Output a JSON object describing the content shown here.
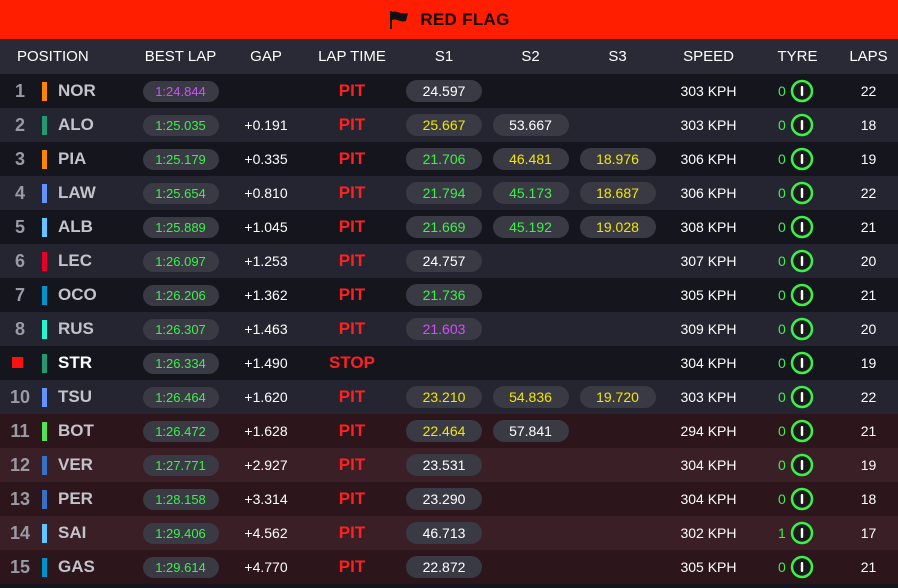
{
  "banner": {
    "title": "RED FLAG"
  },
  "colors": {
    "banner": "#ff1e00",
    "green": "#3cf04a",
    "yellow": "#f3e600",
    "purple": "#d34dff",
    "red": "#ff2020"
  },
  "headers": {
    "position": "POSITION",
    "best_lap": "BEST LAP",
    "gap": "GAP",
    "lap_time": "LAP TIME",
    "s1": "S1",
    "s2": "S2",
    "s3": "S3",
    "speed": "SPEED",
    "tyre": "TYRE",
    "laps": "LAPS"
  },
  "rows": [
    {
      "pos": "1",
      "driver": "NOR",
      "team_color": "#ff8700",
      "best_lap": "1:24.844",
      "best_cls": "purple",
      "gap": "",
      "status": "PIT",
      "s1": "24.597",
      "s1c": "white",
      "s2": "",
      "s2c": "",
      "s3": "",
      "s3c": "",
      "speed": "303 KPH",
      "tyre_age": "0",
      "laps": "22",
      "bg": "dark"
    },
    {
      "pos": "2",
      "driver": "ALO",
      "team_color": "#229971",
      "best_lap": "1:25.035",
      "best_cls": "green",
      "gap": "+0.191",
      "status": "PIT",
      "s1": "25.667",
      "s1c": "yellow",
      "s2": "53.667",
      "s2c": "white",
      "s3": "",
      "s3c": "",
      "speed": "303 KPH",
      "tyre_age": "0",
      "laps": "18",
      "bg": "light"
    },
    {
      "pos": "3",
      "driver": "PIA",
      "team_color": "#ff8700",
      "best_lap": "1:25.179",
      "best_cls": "green",
      "gap": "+0.335",
      "status": "PIT",
      "s1": "21.706",
      "s1c": "green",
      "s2": "46.481",
      "s2c": "yellow",
      "s3": "18.976",
      "s3c": "yellow",
      "speed": "306 KPH",
      "tyre_age": "0",
      "laps": "19",
      "bg": "dark"
    },
    {
      "pos": "4",
      "driver": "LAW",
      "team_color": "#6692ff",
      "best_lap": "1:25.654",
      "best_cls": "green",
      "gap": "+0.810",
      "status": "PIT",
      "s1": "21.794",
      "s1c": "green",
      "s2": "45.173",
      "s2c": "green",
      "s3": "18.687",
      "s3c": "yellow",
      "speed": "306 KPH",
      "tyre_age": "0",
      "laps": "22",
      "bg": "light"
    },
    {
      "pos": "5",
      "driver": "ALB",
      "team_color": "#64c4ff",
      "best_lap": "1:25.889",
      "best_cls": "green",
      "gap": "+1.045",
      "status": "PIT",
      "s1": "21.669",
      "s1c": "green",
      "s2": "45.192",
      "s2c": "green",
      "s3": "19.028",
      "s3c": "yellow",
      "speed": "308 KPH",
      "tyre_age": "0",
      "laps": "21",
      "bg": "dark"
    },
    {
      "pos": "6",
      "driver": "LEC",
      "team_color": "#e8002d",
      "best_lap": "1:26.097",
      "best_cls": "green",
      "gap": "+1.253",
      "status": "PIT",
      "s1": "24.757",
      "s1c": "white",
      "s2": "",
      "s2c": "",
      "s3": "",
      "s3c": "",
      "speed": "307 KPH",
      "tyre_age": "0",
      "laps": "20",
      "bg": "light"
    },
    {
      "pos": "7",
      "driver": "OCO",
      "team_color": "#0093cc",
      "best_lap": "1:26.206",
      "best_cls": "green",
      "gap": "+1.362",
      "status": "PIT",
      "s1": "21.736",
      "s1c": "green",
      "s2": "",
      "s2c": "",
      "s3": "",
      "s3c": "",
      "speed": "305 KPH",
      "tyre_age": "0",
      "laps": "21",
      "bg": "dark"
    },
    {
      "pos": "8",
      "driver": "RUS",
      "team_color": "#27f4d2",
      "best_lap": "1:26.307",
      "best_cls": "green",
      "gap": "+1.463",
      "status": "PIT",
      "s1": "21.603",
      "s1c": "purple",
      "s2": "",
      "s2c": "",
      "s3": "",
      "s3c": "",
      "speed": "309 KPH",
      "tyre_age": "0",
      "laps": "20",
      "bg": "light"
    },
    {
      "pos": "",
      "stop": true,
      "driver": "STR",
      "active": true,
      "team_color": "#229971",
      "best_lap": "1:26.334",
      "best_cls": "green",
      "gap": "+1.490",
      "status": "STOP",
      "s1": "",
      "s1c": "",
      "s2": "",
      "s2c": "",
      "s3": "",
      "s3c": "",
      "speed": "304 KPH",
      "tyre_age": "0",
      "laps": "19",
      "bg": "dark"
    },
    {
      "pos": "10",
      "driver": "TSU",
      "team_color": "#6692ff",
      "best_lap": "1:26.464",
      "best_cls": "green",
      "gap": "+1.620",
      "status": "PIT",
      "s1": "23.210",
      "s1c": "yellow",
      "s2": "54.836",
      "s2c": "yellow",
      "s3": "19.720",
      "s3c": "yellow",
      "speed": "303 KPH",
      "tyre_age": "0",
      "laps": "22",
      "bg": "light"
    },
    {
      "pos": "11",
      "driver": "BOT",
      "team_color": "#52e252",
      "best_lap": "1:26.472",
      "best_cls": "green",
      "gap": "+1.628",
      "status": "PIT",
      "s1": "22.464",
      "s1c": "yellow",
      "s2": "57.841",
      "s2c": "white",
      "s3": "",
      "s3c": "",
      "speed": "294 KPH",
      "tyre_age": "0",
      "laps": "21",
      "bg": "mdark"
    },
    {
      "pos": "12",
      "driver": "VER",
      "team_color": "#3671c6",
      "best_lap": "1:27.771",
      "best_cls": "green",
      "gap": "+2.927",
      "status": "PIT",
      "s1": "23.531",
      "s1c": "white",
      "s2": "",
      "s2c": "",
      "s3": "",
      "s3c": "",
      "speed": "304 KPH",
      "tyre_age": "0",
      "laps": "19",
      "bg": "mlight"
    },
    {
      "pos": "13",
      "driver": "PER",
      "team_color": "#3671c6",
      "best_lap": "1:28.158",
      "best_cls": "green",
      "gap": "+3.314",
      "status": "PIT",
      "s1": "23.290",
      "s1c": "white",
      "s2": "",
      "s2c": "",
      "s3": "",
      "s3c": "",
      "speed": "304 KPH",
      "tyre_age": "0",
      "laps": "18",
      "bg": "mdark"
    },
    {
      "pos": "14",
      "driver": "SAI",
      "team_color": "#64c4ff",
      "best_lap": "1:29.406",
      "best_cls": "green",
      "gap": "+4.562",
      "status": "PIT",
      "s1": "46.713",
      "s1c": "white",
      "s2": "",
      "s2c": "",
      "s3": "",
      "s3c": "",
      "speed": "302 KPH",
      "tyre_age": "1",
      "laps": "17",
      "bg": "mlight"
    },
    {
      "pos": "15",
      "driver": "GAS",
      "team_color": "#0093cc",
      "best_lap": "1:29.614",
      "best_cls": "green",
      "gap": "+4.770",
      "status": "PIT",
      "s1": "22.872",
      "s1c": "white",
      "s2": "",
      "s2c": "",
      "s3": "",
      "s3c": "",
      "speed": "305 KPH",
      "tyre_age": "0",
      "laps": "21",
      "bg": "mdark"
    }
  ]
}
